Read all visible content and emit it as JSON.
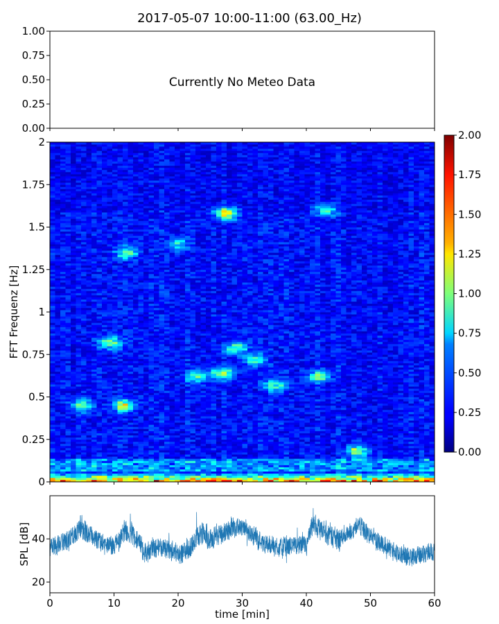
{
  "figure": {
    "title": "2017-05-07 10:00-11:00 (63.00_Hz)"
  },
  "chart_data": [
    {
      "id": "meteo",
      "type": "line",
      "message": "Currently No Meteo Data",
      "ylim": [
        0,
        1
      ],
      "yticks": [
        "0.00",
        "0.25",
        "0.50",
        "0.75",
        "1.00"
      ],
      "xlim": [
        0,
        60
      ],
      "series": []
    },
    {
      "id": "spectrogram",
      "type": "heatmap",
      "ylabel": "FFT Frequenz [Hz]",
      "xlim": [
        0,
        60
      ],
      "ylim": [
        0,
        2
      ],
      "yticks": [
        {
          "v": 0,
          "label": "0"
        },
        {
          "v": 0.25,
          "label": "0.25"
        },
        {
          "v": 0.5,
          "label": "0.5"
        },
        {
          "v": 0.75,
          "label": "0.75"
        },
        {
          "v": 1,
          "label": "1"
        },
        {
          "v": 1.25,
          "label": "1.25"
        },
        {
          "v": 1.5,
          "label": "1.5"
        },
        {
          "v": 1.75,
          "label": "1.75"
        },
        {
          "v": 2,
          "label": "2"
        }
      ],
      "colormap": "jet",
      "colorbar": {
        "vmin": 0,
        "vmax": 2,
        "ticks": [
          "0.00",
          "0.25",
          "0.50",
          "0.75",
          "1.00",
          "1.25",
          "1.50",
          "1.75",
          "2.00"
        ]
      },
      "background_level": 0.3,
      "hotspots": [
        {
          "t": 27.5,
          "f": 1.58,
          "value": 1.2
        },
        {
          "t": 9.5,
          "f": 0.82,
          "value": 0.95
        },
        {
          "t": 12,
          "f": 1.35,
          "value": 0.8
        },
        {
          "t": 11.5,
          "f": 0.45,
          "value": 1.0
        },
        {
          "t": 27,
          "f": 0.64,
          "value": 0.9
        },
        {
          "t": 29,
          "f": 0.79,
          "value": 0.85
        },
        {
          "t": 48,
          "f": 0.18,
          "value": 1.0
        },
        {
          "t": 42,
          "f": 0.62,
          "value": 0.85
        },
        {
          "t": 5,
          "f": 0.45,
          "value": 0.75
        },
        {
          "t": 23,
          "f": 0.62,
          "value": 0.75
        },
        {
          "t": 35,
          "f": 0.57,
          "value": 0.75
        },
        {
          "t": 43,
          "f": 1.6,
          "value": 0.65
        },
        {
          "t": 32,
          "f": 0.72,
          "value": 0.7
        },
        {
          "t": 20,
          "f": 1.4,
          "value": 0.6
        }
      ],
      "low_freq_band": {
        "f_max": 0.06,
        "value": 1.5
      }
    },
    {
      "id": "spl",
      "type": "line",
      "ylabel": "SPL [dB]",
      "xlabel": "time [min]",
      "xlim": [
        0,
        60
      ],
      "ylim": [
        15,
        60
      ],
      "yticks": [
        20,
        40
      ],
      "xticks": [
        0,
        10,
        20,
        30,
        40,
        50,
        60
      ],
      "color": "#1f77b4",
      "series": [
        {
          "x": [
            0,
            2,
            4,
            5,
            7,
            9,
            10,
            12,
            13,
            15,
            16,
            18,
            20,
            22,
            24,
            25,
            27,
            29,
            30,
            32,
            34,
            36,
            38,
            40,
            41,
            43,
            45,
            47,
            48,
            50,
            52,
            54,
            56,
            58,
            60
          ],
          "mean": [
            37,
            38,
            41,
            46,
            40,
            37,
            37,
            43,
            42,
            33,
            36,
            35,
            34,
            36,
            44,
            40,
            43,
            46,
            45,
            41,
            37,
            36,
            37,
            36,
            46,
            43,
            40,
            43,
            47,
            41,
            38,
            33,
            32,
            33,
            34
          ],
          "spread": [
            6,
            6,
            7,
            8,
            7,
            6,
            6,
            7,
            7,
            7,
            6,
            6,
            7,
            7,
            8,
            7,
            7,
            6,
            6,
            6,
            6,
            6,
            6,
            6,
            7,
            7,
            7,
            6,
            6,
            6,
            6,
            6,
            6,
            6,
            6
          ]
        }
      ]
    }
  ]
}
